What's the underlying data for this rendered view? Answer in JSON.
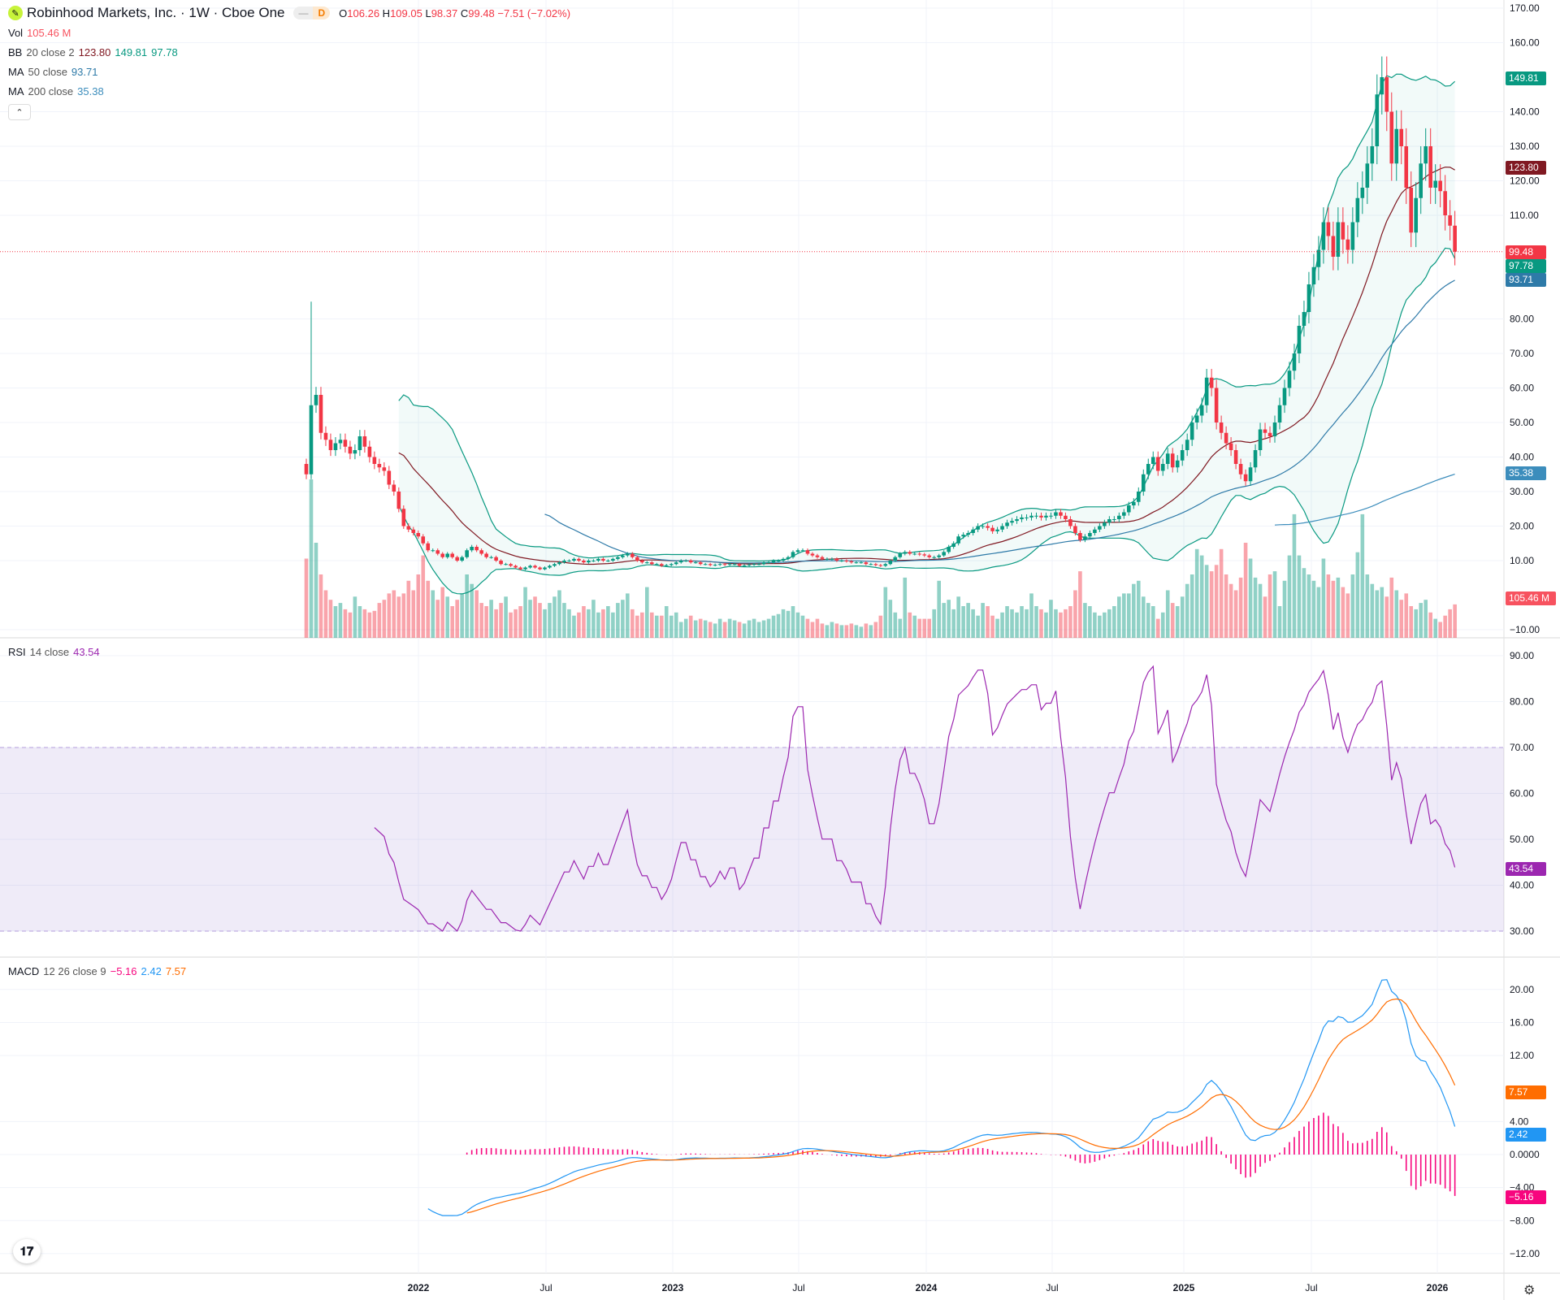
{
  "header": {
    "title": "Robinhood Markets, Inc. · 1W · Cboe One",
    "badge_a": "—",
    "badge_b": "D",
    "o_label": "O",
    "o": "106.26",
    "h_label": "H",
    "h": "109.05",
    "l_label": "L",
    "l": "98.37",
    "c_label": "C",
    "c": "99.48",
    "change": "−7.51 (−7.02%)"
  },
  "legend": {
    "vol": {
      "name": "Vol",
      "value": "105.46 M"
    },
    "bb": {
      "name": "BB",
      "params": "20 close 2",
      "basis": "123.80",
      "upper": "149.81",
      "lower": "97.78"
    },
    "ma50": {
      "name": "MA",
      "params": "50 close",
      "value": "93.71"
    },
    "ma200": {
      "name": "MA",
      "params": "200 close",
      "value": "35.38"
    },
    "rsi": {
      "name": "RSI",
      "params": "14 close",
      "value": "43.54"
    },
    "macd": {
      "name": "MACD",
      "params": "12 26 close 9",
      "hist": "−5.16",
      "macd": "2.42",
      "signal": "7.57"
    }
  },
  "colors": {
    "up": "#089981",
    "down": "#f23645",
    "bb_basis": "#801922",
    "bb_band": "#089981",
    "ma50": "#2e7aa8",
    "ma200": "#3c8dbc",
    "rsi": "#9c27b0",
    "rsi_band": "#7e57c2",
    "macd": "#2196f3",
    "signal": "#ff6d00",
    "hist": "#f7057e"
  },
  "icons": {
    "logo": "robinhood-feather-icon",
    "collapse": "chevron-up-icon",
    "tv": "tradingview-logo-icon",
    "settings": "gear-icon"
  },
  "tags": {
    "price": "99.48",
    "bb_upper": "149.81",
    "bb_basis": "123.80",
    "bb_lower": "97.78",
    "ma50": "93.71",
    "ma200": "35.38",
    "volume": "105.46 M",
    "rsi": "43.54",
    "macd": "2.42",
    "signal": "7.57",
    "hist": "−5.16"
  },
  "chart_data": {
    "type": "candlestick",
    "interval": "1W",
    "x_ticks": [
      "2022",
      "Jul",
      "2023",
      "Jul",
      "2024",
      "Jul",
      "2025",
      "Jul",
      "2026"
    ],
    "price_axis": {
      "ylim": [
        -10,
        170
      ],
      "ticks": [
        "170.00",
        "160.00",
        "140.00",
        "130.00",
        "120.00",
        "110.00",
        "80.00",
        "70.00",
        "60.00",
        "50.00",
        "40.00",
        "30.00",
        "20.00",
        "10.00",
        "−10.00"
      ]
    },
    "rsi_axis": {
      "ylim": [
        30,
        90
      ],
      "ticks": [
        "90.00",
        "80.00",
        "70.00",
        "60.00",
        "50.00",
        "40.00",
        "30.00"
      ],
      "band": [
        30,
        70
      ]
    },
    "macd_axis": {
      "ylim": [
        -12,
        20
      ],
      "ticks": [
        "20.00",
        "16.00",
        "12.00",
        "4.00",
        "0.0000",
        "−4.00",
        "−8.00",
        "−12.00"
      ]
    },
    "first_candle": {
      "open": 38,
      "high_week2": 85
    },
    "closes": [
      35,
      55,
      58,
      47,
      45,
      42,
      44,
      45,
      43,
      41,
      42,
      46,
      43,
      40,
      38,
      37,
      36,
      32,
      30,
      25,
      20,
      19,
      18,
      17,
      15,
      13,
      13,
      12,
      11,
      12,
      11,
      10,
      11,
      13,
      14,
      13,
      12,
      11,
      11,
      10,
      9,
      9,
      8.5,
      8,
      7.5,
      8,
      8.5,
      8,
      7.5,
      8,
      8.5,
      9,
      9.5,
      10,
      10,
      10.5,
      10,
      9.5,
      10,
      10,
      10.5,
      10,
      10,
      10.5,
      11,
      11.5,
      12,
      11,
      10,
      9.5,
      9.5,
      9,
      9,
      8.5,
      8.7,
      9,
      9.5,
      10,
      10,
      9.5,
      9.5,
      9,
      9,
      8.7,
      8.8,
      9,
      8.8,
      9,
      9,
      8.5,
      8.6,
      8.8,
      9,
      9,
      9.5,
      9.5,
      10,
      10,
      10.5,
      11,
      12.5,
      13,
      13,
      12,
      11.5,
      11,
      10.5,
      10.5,
      10.5,
      10,
      10,
      9.8,
      9.5,
      9.5,
      9.5,
      9,
      9,
      8.7,
      8.5,
      9,
      10,
      11,
      12,
      12.5,
      12,
      12,
      11.8,
      11.5,
      11,
      11,
      11.5,
      12.5,
      14,
      15,
      17,
      17.5,
      18,
      19,
      20,
      20,
      19.5,
      18.5,
      19,
      20,
      21,
      21.5,
      22,
      22.5,
      22.5,
      23,
      23,
      22.5,
      23,
      23,
      24,
      23,
      22,
      20,
      18,
      16,
      17,
      18,
      19,
      20,
      21,
      22,
      22,
      23,
      24,
      26,
      27,
      30,
      35,
      38,
      40,
      36,
      38,
      41,
      37,
      39,
      42,
      45,
      50,
      52,
      55,
      63,
      60,
      50,
      47,
      44,
      42,
      38,
      35,
      33,
      37,
      42,
      48,
      47,
      46,
      50,
      55,
      60,
      65,
      70,
      78,
      82,
      90,
      95,
      100,
      108,
      104,
      98,
      108,
      103,
      100,
      108,
      115,
      118,
      125,
      130,
      145,
      150,
      140,
      125,
      135,
      130,
      118,
      105,
      115,
      125,
      130,
      118,
      120,
      117,
      110,
      107,
      99.48
    ],
    "volumes_m": [
      250,
      500,
      300,
      200,
      150,
      120,
      100,
      110,
      90,
      80,
      130,
      100,
      90,
      80,
      85,
      110,
      120,
      140,
      150,
      130,
      140,
      180,
      150,
      200,
      260,
      180,
      150,
      120,
      160,
      130,
      100,
      120,
      140,
      200,
      170,
      150,
      110,
      100,
      120,
      90,
      110,
      130,
      80,
      90,
      100,
      160,
      120,
      130,
      110,
      90,
      110,
      130,
      150,
      110,
      90,
      70,
      80,
      100,
      90,
      120,
      80,
      90,
      100,
      80,
      110,
      120,
      140,
      90,
      70,
      80,
      160,
      80,
      70,
      70,
      100,
      70,
      80,
      50,
      60,
      70,
      55,
      60,
      55,
      50,
      45,
      60,
      50,
      60,
      55,
      50,
      45,
      55,
      60,
      50,
      55,
      60,
      70,
      75,
      90,
      85,
      100,
      80,
      70,
      60,
      50,
      60,
      45,
      40,
      50,
      45,
      40,
      40,
      45,
      40,
      35,
      45,
      40,
      50,
      70,
      160,
      120,
      80,
      60,
      190,
      80,
      70,
      60,
      60,
      60,
      90,
      180,
      110,
      120,
      90,
      130,
      100,
      110,
      90,
      70,
      110,
      100,
      70,
      60,
      80,
      100,
      90,
      80,
      100,
      90,
      140,
      100,
      90,
      80,
      120,
      90,
      80,
      90,
      100,
      150,
      210,
      110,
      100,
      80,
      70,
      80,
      90,
      100,
      130,
      140,
      140,
      170,
      180,
      130,
      110,
      100,
      60,
      80,
      150,
      110,
      100,
      130,
      170,
      200,
      280,
      260,
      230,
      210,
      230,
      280,
      200,
      170,
      150,
      190,
      300,
      250,
      190,
      170,
      130,
      200,
      210,
      100,
      180,
      260,
      390,
      260,
      220,
      200,
      180,
      160,
      250,
      200,
      180,
      190,
      160,
      140,
      200,
      270,
      390,
      200,
      170,
      150,
      160,
      130,
      190,
      150,
      120,
      140,
      100,
      90,
      110,
      120,
      80,
      60,
      50,
      70,
      90,
      105.46
    ]
  }
}
